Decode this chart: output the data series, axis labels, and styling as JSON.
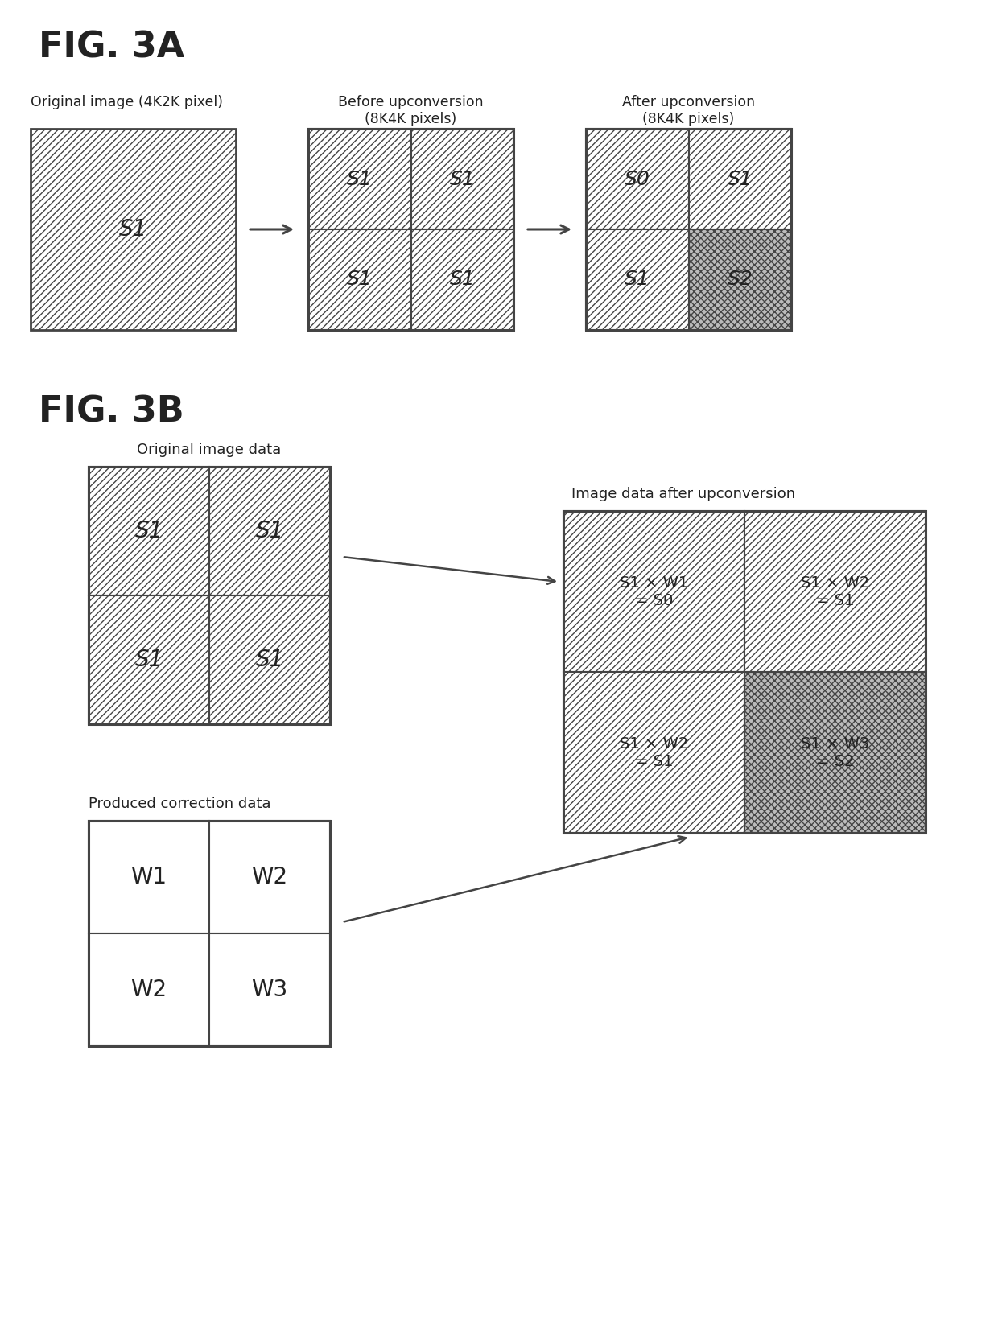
{
  "fig_title_a": "FIG. 3A",
  "fig_title_b": "FIG. 3B",
  "label_orig_3a": "Original image (4K2K pixel)",
  "label_before": "Before upconversion\n(8K4K pixels)",
  "label_after": "After upconversion\n(8K4K pixels)",
  "label_orig_3b": "Original image data",
  "label_correction": "Produced correction data",
  "label_after_3b": "Image data after upconversion",
  "bg_color": "#ffffff",
  "box_edge": "#444444",
  "text_color": "#222222"
}
